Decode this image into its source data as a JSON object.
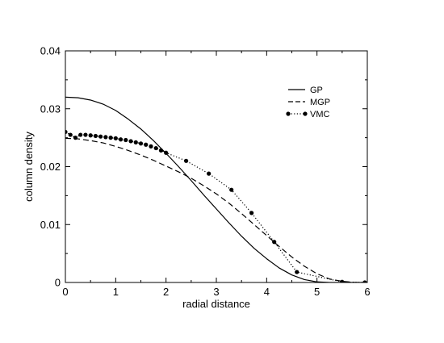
{
  "chart_data": {
    "type": "line",
    "title": "",
    "xlabel": "radial distance",
    "ylabel": "column density",
    "xlim": [
      0,
      6
    ],
    "ylim": [
      0,
      0.04
    ],
    "xticks": [
      "0",
      "1",
      "2",
      "3",
      "4",
      "5",
      "6"
    ],
    "yticks": [
      "0",
      "0.01",
      "0.02",
      "0.03",
      "0.04"
    ],
    "grid": false,
    "legend_position": "top-right",
    "series": [
      {
        "name": "GP",
        "style": "solid",
        "color": "#000000",
        "x": [
          0,
          0.25,
          0.5,
          0.75,
          1,
          1.25,
          1.5,
          1.75,
          2,
          2.25,
          2.5,
          2.75,
          3,
          3.25,
          3.5,
          3.75,
          4,
          4.25,
          4.5,
          4.75,
          5,
          5.25,
          5.5,
          6
        ],
        "y": [
          0.032,
          0.0319,
          0.0315,
          0.0308,
          0.0297,
          0.0282,
          0.0265,
          0.0245,
          0.0223,
          0.02,
          0.0176,
          0.0151,
          0.0127,
          0.0103,
          0.008,
          0.0059,
          0.0041,
          0.0025,
          0.0013,
          0.0005,
          0.0001,
          0,
          0,
          0
        ]
      },
      {
        "name": "MGP",
        "style": "dashed",
        "color": "#000000",
        "x": [
          0,
          0.25,
          0.5,
          0.75,
          1,
          1.25,
          1.5,
          1.75,
          2,
          2.25,
          2.5,
          2.75,
          3,
          3.25,
          3.5,
          3.75,
          4,
          4.25,
          4.5,
          4.75,
          5,
          5.25,
          5.5,
          5.75,
          6
        ],
        "y": [
          0.0249,
          0.0248,
          0.0245,
          0.0241,
          0.0235,
          0.0228,
          0.022,
          0.0211,
          0.0201,
          0.0191,
          0.018,
          0.0167,
          0.0153,
          0.0137,
          0.0119,
          0.01,
          0.0081,
          0.0062,
          0.0044,
          0.0028,
          0.0015,
          0.0006,
          0.0002,
          0,
          0
        ]
      },
      {
        "name": "VMC",
        "style": "dotted-markers",
        "color": "#000000",
        "x": [
          0,
          0.1,
          0.2,
          0.3,
          0.4,
          0.5,
          0.6,
          0.7,
          0.8,
          0.9,
          1.0,
          1.1,
          1.2,
          1.3,
          1.4,
          1.5,
          1.6,
          1.7,
          1.8,
          1.9,
          2.0,
          2.4,
          2.85,
          3.3,
          3.7,
          4.15,
          4.6,
          5.5,
          5.95
        ],
        "y": [
          0.026,
          0.0255,
          0.025,
          0.0255,
          0.0255,
          0.0254,
          0.0253,
          0.0252,
          0.0251,
          0.025,
          0.0249,
          0.0247,
          0.0246,
          0.0244,
          0.0242,
          0.024,
          0.0238,
          0.0235,
          0.0232,
          0.0228,
          0.0224,
          0.021,
          0.0188,
          0.016,
          0.012,
          0.007,
          0.0018,
          0.0001,
          0.0
        ]
      }
    ]
  }
}
